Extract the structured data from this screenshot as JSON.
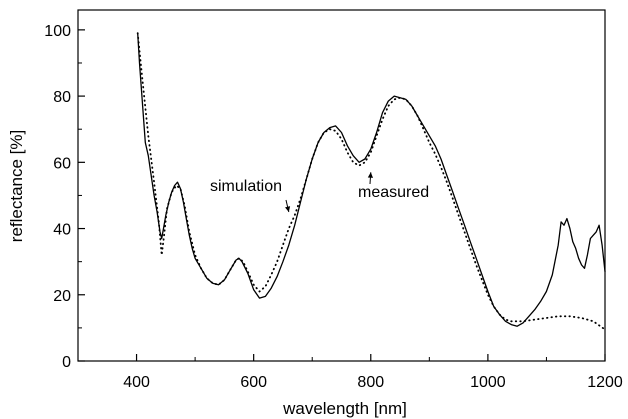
{
  "chart_data": {
    "type": "line",
    "title": "",
    "xlabel": "wavelength [nm]",
    "ylabel": "reflectance [%]",
    "xlim": [
      300,
      1200
    ],
    "ylim": [
      0,
      106
    ],
    "xticks": [
      "400",
      "600",
      "800",
      "1000",
      "1200"
    ],
    "yticks": [
      "0",
      "20",
      "40",
      "60",
      "80",
      "100"
    ],
    "grid": false,
    "legend": "none",
    "series": [
      {
        "name": "measured",
        "style": "solid",
        "color": "#000000",
        "points": [
          [
            402,
            99
          ],
          [
            405,
            90
          ],
          [
            410,
            78
          ],
          [
            415,
            66
          ],
          [
            420,
            62
          ],
          [
            425,
            56
          ],
          [
            430,
            50
          ],
          [
            435,
            45
          ],
          [
            440,
            39
          ],
          [
            443,
            37
          ],
          [
            446,
            40
          ],
          [
            450,
            44
          ],
          [
            455,
            48
          ],
          [
            460,
            51
          ],
          [
            465,
            53
          ],
          [
            470,
            54
          ],
          [
            475,
            52
          ],
          [
            480,
            48
          ],
          [
            485,
            43
          ],
          [
            490,
            38
          ],
          [
            495,
            34
          ],
          [
            500,
            31
          ],
          [
            510,
            28
          ],
          [
            520,
            25
          ],
          [
            530,
            23.5
          ],
          [
            540,
            23
          ],
          [
            550,
            24.5
          ],
          [
            560,
            27.5
          ],
          [
            570,
            30.5
          ],
          [
            575,
            31
          ],
          [
            580,
            30
          ],
          [
            590,
            26.5
          ],
          [
            600,
            21.5
          ],
          [
            610,
            19
          ],
          [
            620,
            19.5
          ],
          [
            630,
            22
          ],
          [
            640,
            25.5
          ],
          [
            650,
            30
          ],
          [
            660,
            35
          ],
          [
            670,
            41
          ],
          [
            680,
            48
          ],
          [
            690,
            55
          ],
          [
            700,
            61
          ],
          [
            710,
            66
          ],
          [
            720,
            69
          ],
          [
            730,
            70.5
          ],
          [
            740,
            71
          ],
          [
            750,
            69
          ],
          [
            760,
            65
          ],
          [
            770,
            62
          ],
          [
            780,
            60
          ],
          [
            790,
            61
          ],
          [
            800,
            64
          ],
          [
            810,
            69
          ],
          [
            820,
            75
          ],
          [
            830,
            78.5
          ],
          [
            840,
            80
          ],
          [
            850,
            79.5
          ],
          [
            860,
            79
          ],
          [
            870,
            77
          ],
          [
            880,
            74
          ],
          [
            890,
            71
          ],
          [
            900,
            68
          ],
          [
            910,
            65
          ],
          [
            920,
            61
          ],
          [
            930,
            56
          ],
          [
            940,
            51
          ],
          [
            950,
            46
          ],
          [
            960,
            41
          ],
          [
            970,
            36
          ],
          [
            980,
            31
          ],
          [
            990,
            26
          ],
          [
            1000,
            21
          ],
          [
            1010,
            16.5
          ],
          [
            1020,
            14
          ],
          [
            1030,
            12
          ],
          [
            1040,
            11
          ],
          [
            1050,
            10.5
          ],
          [
            1060,
            11.5
          ],
          [
            1070,
            13.5
          ],
          [
            1080,
            15.5
          ],
          [
            1090,
            18
          ],
          [
            1100,
            21
          ],
          [
            1110,
            26
          ],
          [
            1120,
            35
          ],
          [
            1125,
            42
          ],
          [
            1130,
            41
          ],
          [
            1135,
            43
          ],
          [
            1140,
            40
          ],
          [
            1145,
            36
          ],
          [
            1150,
            34
          ],
          [
            1155,
            31
          ],
          [
            1160,
            29
          ],
          [
            1165,
            28
          ],
          [
            1170,
            32
          ],
          [
            1175,
            37
          ],
          [
            1180,
            38
          ],
          [
            1185,
            39
          ],
          [
            1190,
            41
          ],
          [
            1195,
            35
          ],
          [
            1200,
            27
          ]
        ]
      },
      {
        "name": "simulation",
        "style": "dotted",
        "color": "#000000",
        "points": [
          [
            402,
            99
          ],
          [
            410,
            85
          ],
          [
            420,
            68
          ],
          [
            430,
            54
          ],
          [
            438,
            42
          ],
          [
            443,
            32
          ],
          [
            447,
            38
          ],
          [
            452,
            46
          ],
          [
            460,
            51
          ],
          [
            468,
            53
          ],
          [
            475,
            52
          ],
          [
            482,
            47
          ],
          [
            490,
            39
          ],
          [
            500,
            32
          ],
          [
            510,
            28
          ],
          [
            520,
            25
          ],
          [
            530,
            23.5
          ],
          [
            540,
            23
          ],
          [
            550,
            24.5
          ],
          [
            560,
            27.5
          ],
          [
            570,
            30.5
          ],
          [
            575,
            31
          ],
          [
            582,
            30
          ],
          [
            590,
            27
          ],
          [
            600,
            23
          ],
          [
            610,
            21
          ],
          [
            620,
            22.5
          ],
          [
            630,
            26
          ],
          [
            640,
            30
          ],
          [
            650,
            35
          ],
          [
            660,
            40
          ],
          [
            670,
            44
          ],
          [
            680,
            49
          ],
          [
            690,
            55
          ],
          [
            700,
            61
          ],
          [
            710,
            66
          ],
          [
            720,
            69
          ],
          [
            730,
            70
          ],
          [
            740,
            69.5
          ],
          [
            750,
            67
          ],
          [
            760,
            63
          ],
          [
            770,
            60
          ],
          [
            780,
            59
          ],
          [
            790,
            60
          ],
          [
            800,
            63
          ],
          [
            810,
            68
          ],
          [
            820,
            73
          ],
          [
            830,
            77
          ],
          [
            840,
            79
          ],
          [
            850,
            79.5
          ],
          [
            860,
            79
          ],
          [
            870,
            77
          ],
          [
            880,
            74
          ],
          [
            890,
            70
          ],
          [
            900,
            66
          ],
          [
            910,
            62.5
          ],
          [
            920,
            58.5
          ],
          [
            930,
            54
          ],
          [
            940,
            49
          ],
          [
            950,
            44
          ],
          [
            960,
            39
          ],
          [
            970,
            34
          ],
          [
            980,
            29
          ],
          [
            990,
            24.5
          ],
          [
            1000,
            20
          ],
          [
            1010,
            16.5
          ],
          [
            1020,
            14
          ],
          [
            1030,
            12.5
          ],
          [
            1040,
            12
          ],
          [
            1050,
            12
          ],
          [
            1060,
            12
          ],
          [
            1080,
            12.5
          ],
          [
            1100,
            13
          ],
          [
            1120,
            13.5
          ],
          [
            1140,
            13.5
          ],
          [
            1160,
            13
          ],
          [
            1180,
            12
          ],
          [
            1200,
            9.5
          ]
        ]
      }
    ],
    "annotations": [
      {
        "text": "simulation",
        "target": [
          660,
          45
        ]
      },
      {
        "text": "measured",
        "target": [
          800,
          57
        ]
      }
    ]
  }
}
